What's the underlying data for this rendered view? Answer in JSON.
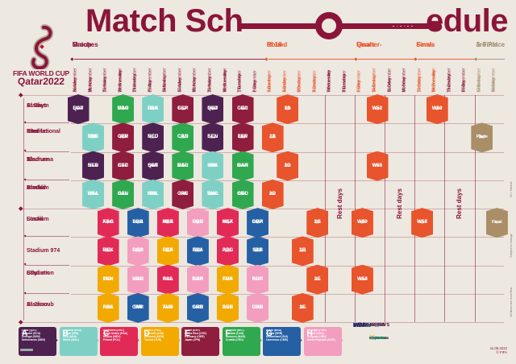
{
  "poster": {
    "title_left": "Match Sch",
    "title_right": "edule",
    "logo_line1": "FIFA WORLD CUP",
    "logo_line2": "Qatar2022",
    "published": "11.08.2022",
    "copyright": "© FIFA"
  },
  "colors": {
    "background": "#EDE8E0",
    "maroon": "#8A1538",
    "orange": "#E8542B",
    "tan": "#A3906F",
    "knockout_badge": "#E8542B",
    "final_badge": "#A98E66",
    "groups": {
      "A": "#4D2251",
      "B": "#7ED0C5",
      "C": "#E22A57",
      "D": "#F2A900",
      "E": "#8F1D3E",
      "F": "#2FA84F",
      "G": "#2660A4",
      "H": "#F39EBF"
    }
  },
  "phases": [
    {
      "line1": "Group",
      "line2": "Matches",
      "color": "#8A1538",
      "col_start": 0,
      "col_end": 12
    },
    {
      "line1": "Round",
      "line2": "of 16",
      "color": "#E8542B",
      "col_start": 13,
      "col_end": 18
    },
    {
      "line1": "Quarter-",
      "line2": "Finals",
      "color": "#E8542B",
      "col_start": 19,
      "col_end": 22
    },
    {
      "line1": "Semi-",
      "line2": "Finals",
      "color": "#E8542B",
      "col_start": 23,
      "col_end": 26
    },
    {
      "line1": "3rd Place",
      "line2": "& Final",
      "color": "#A3906F",
      "col_start": 27,
      "col_end": 28
    }
  ],
  "columns": [
    {
      "day": "Sunday",
      "date": "20 November",
      "color": "#8A1538"
    },
    {
      "day": "Monday",
      "date": "21 November",
      "color": "#8A1538"
    },
    {
      "day": "Tuesday",
      "date": "22 November",
      "color": "#8A1538"
    },
    {
      "day": "Wednesday",
      "date": "23 November",
      "color": "#8A1538"
    },
    {
      "day": "Thursday",
      "date": "24 November",
      "color": "#8A1538"
    },
    {
      "day": "Friday",
      "date": "25 November",
      "color": "#8A1538"
    },
    {
      "day": "Saturday",
      "date": "26 November",
      "color": "#8A1538"
    },
    {
      "day": "Sunday",
      "date": "27 November",
      "color": "#8A1538"
    },
    {
      "day": "Monday",
      "date": "28 November",
      "color": "#8A1538"
    },
    {
      "day": "Tuesday",
      "date": "29 November",
      "color": "#8A1538"
    },
    {
      "day": "Wednesday",
      "date": "30 November",
      "color": "#8A1538"
    },
    {
      "day": "Thursday",
      "date": "1 December",
      "color": "#8A1538"
    },
    {
      "day": "Friday",
      "date": "2 December",
      "color": "#8A1538"
    },
    {
      "day": "Saturday",
      "date": "3 December",
      "color": "#E8542B"
    },
    {
      "day": "Sunday",
      "date": "4 December",
      "color": "#E8542B"
    },
    {
      "day": "Monday",
      "date": "5 December",
      "color": "#E8542B"
    },
    {
      "day": "Tuesday",
      "date": "6 December",
      "color": "#E8542B"
    },
    {
      "day": "Wednesday",
      "date": "7 December",
      "color": "#8A1538"
    },
    {
      "day": "Thursday",
      "date": "8 December",
      "color": "#8A1538"
    },
    {
      "day": "Friday",
      "date": "9 December",
      "color": "#E8542B"
    },
    {
      "day": "Saturday",
      "date": "10 December",
      "color": "#E8542B"
    },
    {
      "day": "Sunday",
      "date": "11 December",
      "color": "#8A1538"
    },
    {
      "day": "Monday",
      "date": "12 December",
      "color": "#8A1538"
    },
    {
      "day": "Tuesday",
      "date": "13 December",
      "color": "#E8542B"
    },
    {
      "day": "Wednesday",
      "date": "14 December",
      "color": "#E8542B"
    },
    {
      "day": "Thursday",
      "date": "15 December",
      "color": "#8A1538"
    },
    {
      "day": "Friday",
      "date": "16 December",
      "color": "#8A1538"
    },
    {
      "day": "Saturday",
      "date": "17 December",
      "color": "#A3906F"
    },
    {
      "day": "Sunday",
      "date": "18 December",
      "color": "#A3906F"
    }
  ],
  "stadiums": [
    [
      "Al Bayt",
      "Stadium"
    ],
    [
      "Khalifa",
      "International",
      "Stadium"
    ],
    [
      "Al",
      "Thumama",
      "Stadium"
    ],
    [
      "Ahmad",
      "Bin Ali",
      "Stadium"
    ],
    [
      "Lusail",
      "Stadium"
    ],
    [
      "Stadium 974"
    ],
    [
      "Education",
      "City",
      "Stadium"
    ],
    [
      "Al Janoub",
      "Stadium"
    ]
  ],
  "rest_days": {
    "label": "Rest days",
    "regions": [
      [
        17,
        18
      ],
      [
        21,
        22
      ],
      [
        25,
        26
      ]
    ]
  },
  "matches": [
    {
      "n": 1,
      "row": 0,
      "col": 0,
      "a": "QAT",
      "b": "ECU",
      "t": "19:00",
      "g": "A"
    },
    {
      "n": 9,
      "row": 0,
      "col": 3,
      "a": "MAR",
      "b": "CRO",
      "t": "13:00",
      "g": "F"
    },
    {
      "n": 20,
      "row": 0,
      "col": 5,
      "a": "ENG",
      "b": "USA",
      "t": "22:00",
      "g": "B"
    },
    {
      "n": 28,
      "row": 0,
      "col": 7,
      "a": "ESP",
      "b": "GER",
      "t": "22:00",
      "g": "E"
    },
    {
      "n": 35,
      "row": 0,
      "col": 9,
      "a": "NED",
      "b": "QAT",
      "t": "18:00",
      "g": "A"
    },
    {
      "n": 44,
      "row": 0,
      "col": 11,
      "a": "CRC",
      "b": "GER",
      "t": "22:00",
      "g": "E"
    },
    {
      "n": 52,
      "row": 0,
      "col": 14,
      "a": "1B",
      "b": "2A",
      "t": "22:00",
      "g": "KO"
    },
    {
      "n": 60,
      "row": 0,
      "col": 20,
      "a": "W51",
      "b": "W52",
      "t": "22:00",
      "g": "KO"
    },
    {
      "n": 62,
      "row": 0,
      "col": 24,
      "a": "W59",
      "b": "W60",
      "t": "22:00",
      "g": "KO"
    },
    {
      "n": 3,
      "row": 1,
      "col": 1,
      "a": "ENG",
      "b": "IRN",
      "t": "16:00",
      "g": "B"
    },
    {
      "n": 10,
      "row": 1,
      "col": 3,
      "a": "GER",
      "b": "JPN",
      "t": "16:00",
      "g": "E"
    },
    {
      "n": 19,
      "row": 1,
      "col": 5,
      "a": "NED",
      "b": "ECU",
      "t": "19:00",
      "g": "A"
    },
    {
      "n": 27,
      "row": 1,
      "col": 7,
      "a": "CRO",
      "b": "CAN",
      "t": "19:00",
      "g": "F"
    },
    {
      "n": 36,
      "row": 1,
      "col": 9,
      "a": "ECU",
      "b": "SEN",
      "t": "18:00",
      "g": "A"
    },
    {
      "n": 43,
      "row": 1,
      "col": 11,
      "a": "JPN",
      "b": "ESP",
      "t": "22:00",
      "g": "E"
    },
    {
      "n": 49,
      "row": 1,
      "col": 13,
      "a": "1A",
      "b": "2B",
      "t": "18:00",
      "g": "KO"
    },
    {
      "n": 63,
      "row": 1,
      "col": 27,
      "lines": [
        "3rd",
        "Place"
      ],
      "t": "18:00",
      "g": "FINAL"
    },
    {
      "n": 2,
      "row": 2,
      "col": 1,
      "a": "SEN",
      "b": "NED",
      "t": "19:00",
      "g": "A"
    },
    {
      "n": 11,
      "row": 2,
      "col": 3,
      "a": "ESP",
      "b": "CRC",
      "t": "19:00",
      "g": "E"
    },
    {
      "n": 18,
      "row": 2,
      "col": 5,
      "a": "QAT",
      "b": "SEN",
      "t": "16:00",
      "g": "A"
    },
    {
      "n": 26,
      "row": 2,
      "col": 7,
      "a": "BEL",
      "b": "MAR",
      "t": "16:00",
      "g": "F"
    },
    {
      "n": 34,
      "row": 2,
      "col": 9,
      "a": "IRN",
      "b": "USA",
      "t": "22:00",
      "g": "B"
    },
    {
      "n": 42,
      "row": 2,
      "col": 11,
      "a": "CAN",
      "b": "MAR",
      "t": "18:00",
      "g": "F"
    },
    {
      "n": 51,
      "row": 2,
      "col": 14,
      "a": "1D",
      "b": "2C",
      "t": "18:00",
      "g": "KO"
    },
    {
      "n": 59,
      "row": 2,
      "col": 20,
      "a": "W55",
      "b": "W56",
      "t": "18:00",
      "g": "KO"
    },
    {
      "n": 4,
      "row": 3,
      "col": 1,
      "a": "USA",
      "b": "WAL",
      "t": "22:00",
      "g": "B"
    },
    {
      "n": 12,
      "row": 3,
      "col": 3,
      "a": "BEL",
      "b": "CAN",
      "t": "22:00",
      "g": "F"
    },
    {
      "n": 17,
      "row": 3,
      "col": 5,
      "a": "WAL",
      "b": "IRN",
      "t": "13:00",
      "g": "B"
    },
    {
      "n": 25,
      "row": 3,
      "col": 7,
      "a": "JPN",
      "b": "CRC",
      "t": "13:00",
      "g": "E"
    },
    {
      "n": 33,
      "row": 3,
      "col": 9,
      "a": "WAL",
      "b": "ENG",
      "t": "22:00",
      "g": "B"
    },
    {
      "n": 41,
      "row": 3,
      "col": 11,
      "a": "CRO",
      "b": "BEL",
      "t": "18:00",
      "g": "F"
    },
    {
      "n": 50,
      "row": 3,
      "col": 13,
      "a": "1C",
      "b": "2D",
      "t": "22:00",
      "g": "KO"
    },
    {
      "n": 7,
      "row": 4,
      "col": 2,
      "a": "ARG",
      "b": "KSA",
      "t": "13:00",
      "g": "C"
    },
    {
      "n": 16,
      "row": 4,
      "col": 4,
      "a": "BRA",
      "b": "SRB",
      "t": "22:00",
      "g": "G"
    },
    {
      "n": 24,
      "row": 4,
      "col": 6,
      "a": "ARG",
      "b": "MEX",
      "t": "22:00",
      "g": "C"
    },
    {
      "n": 32,
      "row": 4,
      "col": 8,
      "a": "POR",
      "b": "URU",
      "t": "22:00",
      "g": "H"
    },
    {
      "n": 40,
      "row": 4,
      "col": 10,
      "a": "KSA",
      "b": "MEX",
      "t": "22:00",
      "g": "C"
    },
    {
      "n": 48,
      "row": 4,
      "col": 12,
      "a": "CMR",
      "b": "BRA",
      "t": "22:00",
      "g": "G"
    },
    {
      "n": 56,
      "row": 4,
      "col": 16,
      "a": "1H",
      "b": "2G",
      "t": "22:00",
      "g": "KO"
    },
    {
      "n": 58,
      "row": 4,
      "col": 19,
      "a": "W49",
      "b": "W50",
      "t": "22:00",
      "g": "KO"
    },
    {
      "n": 61,
      "row": 4,
      "col": 23,
      "a": "W57",
      "b": "W58",
      "t": "22:00",
      "g": "KO"
    },
    {
      "n": 64,
      "row": 4,
      "col": 28,
      "lines": [
        "Final"
      ],
      "t": "18:00",
      "g": "FINAL"
    },
    {
      "n": 8,
      "row": 5,
      "col": 2,
      "a": "MEX",
      "b": "POL",
      "t": "19:00",
      "g": "C"
    },
    {
      "n": 15,
      "row": 5,
      "col": 4,
      "a": "POR",
      "b": "GHA",
      "t": "19:00",
      "g": "H"
    },
    {
      "n": 23,
      "row": 5,
      "col": 6,
      "a": "FRA",
      "b": "DEN",
      "t": "19:00",
      "g": "D"
    },
    {
      "n": 31,
      "row": 5,
      "col": 8,
      "a": "BRA",
      "b": "SUI",
      "t": "19:00",
      "g": "G"
    },
    {
      "n": 39,
      "row": 5,
      "col": 10,
      "a": "POL",
      "b": "ARG",
      "t": "22:00",
      "g": "C"
    },
    {
      "n": 47,
      "row": 5,
      "col": 12,
      "a": "SRB",
      "b": "SUI",
      "t": "22:00",
      "g": "G"
    },
    {
      "n": 54,
      "row": 5,
      "col": 15,
      "a": "1G",
      "b": "2H",
      "t": "22:00",
      "g": "KO"
    },
    {
      "n": 5,
      "row": 6,
      "col": 2,
      "a": "DEN",
      "b": "TUN",
      "t": "16:00",
      "g": "D"
    },
    {
      "n": 14,
      "row": 6,
      "col": 4,
      "a": "URU",
      "b": "KOR",
      "t": "16:00",
      "g": "H"
    },
    {
      "n": 22,
      "row": 6,
      "col": 6,
      "a": "POL",
      "b": "KSA",
      "t": "16:00",
      "g": "C"
    },
    {
      "n": 30,
      "row": 6,
      "col": 8,
      "a": "KOR",
      "b": "GHA",
      "t": "16:00",
      "g": "H"
    },
    {
      "n": 38,
      "row": 6,
      "col": 10,
      "a": "TUN",
      "b": "FRA",
      "t": "18:00",
      "g": "D"
    },
    {
      "n": 45,
      "row": 6,
      "col": 12,
      "a": "KOR",
      "b": "POR",
      "t": "18:00",
      "g": "H"
    },
    {
      "n": 55,
      "row": 6,
      "col": 16,
      "a": "1F",
      "b": "2E",
      "t": "18:00",
      "g": "KO"
    },
    {
      "n": 57,
      "row": 6,
      "col": 19,
      "a": "W53",
      "b": "W54",
      "t": "18:00",
      "g": "KO"
    },
    {
      "n": 6,
      "row": 7,
      "col": 2,
      "a": "FRA",
      "b": "AUS",
      "t": "22:00",
      "g": "D"
    },
    {
      "n": 13,
      "row": 7,
      "col": 4,
      "a": "SUI",
      "b": "CMR",
      "t": "13:00",
      "g": "G"
    },
    {
      "n": 21,
      "row": 7,
      "col": 6,
      "a": "TUN",
      "b": "AUS",
      "t": "13:00",
      "g": "D"
    },
    {
      "n": 29,
      "row": 7,
      "col": 8,
      "a": "CMR",
      "b": "SRB",
      "t": "13:00",
      "g": "G"
    },
    {
      "n": 37,
      "row": 7,
      "col": 10,
      "a": "AUS",
      "b": "DEN",
      "t": "18:00",
      "g": "D"
    },
    {
      "n": 46,
      "row": 7,
      "col": 12,
      "a": "GHA",
      "b": "URU",
      "t": "18:00",
      "g": "H"
    },
    {
      "n": 53,
      "row": 7,
      "col": 15,
      "a": "1E",
      "b": "2F",
      "t": "18:00",
      "g": "KO"
    }
  ],
  "legend": [
    {
      "letter": "A",
      "teams": [
        "Qatar (QAT)",
        "Ecuador (ECU)",
        "Senegal (SEN)",
        "Netherlands (NED)"
      ]
    },
    {
      "letter": "B",
      "teams": [
        "England (ENG)",
        "IR Iran (IRN)",
        "USA (USA)",
        "Wales (WAL)"
      ]
    },
    {
      "letter": "C",
      "teams": [
        "Argentina (ARG)",
        "Saudi Arabia (KSA)",
        "Mexico (MEX)",
        "Poland (POL)"
      ]
    },
    {
      "letter": "D",
      "teams": [
        "France (FRA)",
        "Australia (AUS)",
        "Denmark (DEN)",
        "Tunisia (TUN)"
      ]
    },
    {
      "letter": "E",
      "teams": [
        "Spain (ESP)",
        "Costa Rica (CRC)",
        "Germany (GER)",
        "Japan (JPN)"
      ]
    },
    {
      "letter": "F",
      "teams": [
        "Belgium (BEL)",
        "Canada (CAN)",
        "Morocco (MAR)",
        "Croatia (CRO)"
      ]
    },
    {
      "letter": "G",
      "teams": [
        "Brazil (BRA)",
        "Serbia (SRB)",
        "Switzerland (SUI)",
        "Cameroon (CMR)"
      ]
    },
    {
      "letter": "H",
      "teams": [
        "Portugal (POR)",
        "Ghana (GHA)",
        "Uruguay (URU)",
        "Korea Republic (KOR)"
      ]
    }
  ],
  "side_notes": [
    "W = Winner",
    "Subject to change",
    "All times are local time"
  ],
  "sponsors_row1": [
    {
      "label": "adidas",
      "color": "#1D1D1B"
    },
    {
      "label": "Coca-Cola",
      "color": "#E61A27"
    },
    {
      "label": "WANDA",
      "color": "#0B56A4"
    },
    {
      "label": "HYUNDAI · KIA",
      "color": "#0A2D5C"
    },
    {
      "label": "QATAR AIRWAYS",
      "color": "#5C0632"
    },
    {
      "label": "QatarEnergy",
      "color": "#4C6A92"
    },
    {
      "label": "VISA",
      "color": "#1A1F71"
    }
  ],
  "sponsors_row2": [
    {
      "label": "Budweiser",
      "color": "#C8102E"
    },
    {
      "label": "BYJU'S",
      "color": "#7B3B8C"
    },
    {
      "label": "crypto.com",
      "color": "#0E2A5C"
    },
    {
      "label": "Hisense",
      "color": "#009B8F"
    },
    {
      "label": "M",
      "color": "#FFC72C"
    },
    {
      "label": "MENGNIU",
      "color": "#009944"
    },
    {
      "label": "vivo",
      "color": "#3E6BE0"
    }
  ]
}
